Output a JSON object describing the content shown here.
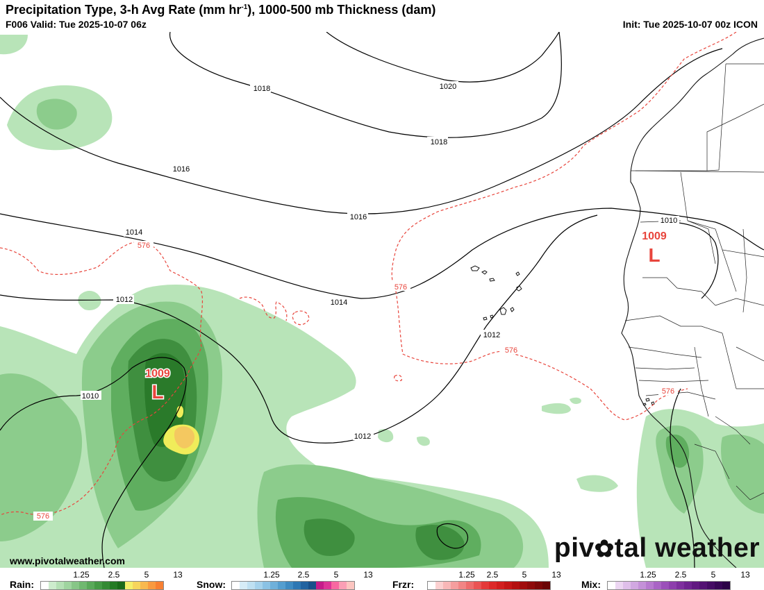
{
  "header": {
    "title_main": "Precipitation Type, 3-h Avg Rate (mm hr",
    "title_sup": "-1",
    "title_tail": "), 1000-500 mb Thickness (dam)",
    "valid": "F006 Valid: Tue 2025-10-07 06z",
    "init": "Init: Tue 2025-10-07 00z ICON"
  },
  "map": {
    "isobar_labels": [
      "1018",
      "1020",
      "1018",
      "1016",
      "1016",
      "1014",
      "1014",
      "1012",
      "1012",
      "1012",
      "1010",
      "1010"
    ],
    "thickness_labels": [
      "576",
      "576",
      "576",
      "576",
      "576"
    ],
    "lows": [
      {
        "pressure": "1009",
        "letter": "L"
      },
      {
        "pressure": "1009",
        "letter": "L"
      }
    ],
    "colors": {
      "isobar": "#000000",
      "thickness": "#e8453c",
      "low": "#e8453c",
      "rain_light": "#b8e4b8",
      "rain_mid": "#5fae5f",
      "rain_heavy": "#2a7a2a",
      "rain_yellow": "#f0ec5a"
    }
  },
  "branding": {
    "website": "www.pivotalweather.com",
    "brand_pre": "piv",
    "brand_post": "tal weather"
  },
  "legend": {
    "rain": {
      "label": "Rain:",
      "ticks": [
        "1.25",
        "2.5",
        "5",
        "13"
      ],
      "colors": [
        "#ffffff",
        "#cdeccd",
        "#b5e0b5",
        "#9fd49f",
        "#87c687",
        "#70b870",
        "#5aa95a",
        "#469a46",
        "#358a35",
        "#257b25",
        "#1a6b1a",
        "#f4f06a",
        "#f6d55c",
        "#f8b84e",
        "#f99a40",
        "#f88032"
      ]
    },
    "snow": {
      "label": "Snow:",
      "ticks": [
        "1.25",
        "2.5",
        "5",
        "13"
      ],
      "colors": [
        "#ffffff",
        "#d6ecf7",
        "#bfe0f2",
        "#a6d2ec",
        "#8bc2e4",
        "#6fb0da",
        "#559ecf",
        "#3f8bc2",
        "#2d77b3",
        "#2163a0",
        "#17508a",
        "#c51b8a",
        "#dd3497",
        "#f768a1",
        "#fa9fb5",
        "#fcc5c0"
      ]
    },
    "frzr": {
      "label": "Frzr:",
      "ticks": [
        "1.25",
        "2.5",
        "5",
        "13"
      ],
      "colors": [
        "#ffffff",
        "#fbd0d0",
        "#f8b7b7",
        "#f59e9e",
        "#f28585",
        "#ee6c6c",
        "#ea5353",
        "#e43a3a",
        "#dd2a2a",
        "#d21f1f",
        "#c41616",
        "#b31010",
        "#a00c0c",
        "#8e0a0a",
        "#7c0808",
        "#6a0606"
      ]
    },
    "mix": {
      "label": "Mix:",
      "ticks": [
        "1.25",
        "2.5",
        "5",
        "13"
      ],
      "colors": [
        "#ffffff",
        "#ecd6f2",
        "#dfbfea",
        "#d1a8e1",
        "#c491d8",
        "#b77acf",
        "#a964c5",
        "#9b50b9",
        "#8d3fac",
        "#7e309e",
        "#6f2490",
        "#611a81",
        "#531273",
        "#450c64",
        "#380756",
        "#2c0447"
      ]
    }
  }
}
